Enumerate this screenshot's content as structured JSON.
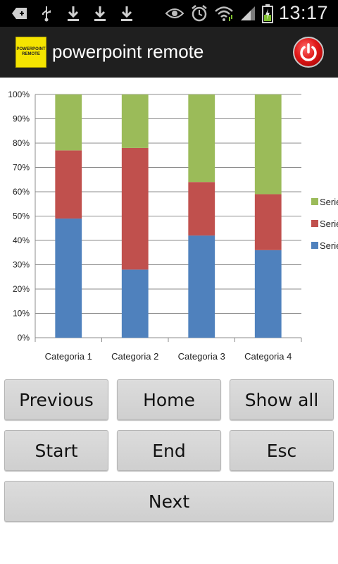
{
  "status_bar": {
    "time": "13:17",
    "icons": [
      "add-icon",
      "usb-icon",
      "download-icon",
      "download-icon",
      "download-icon",
      "eye-icon",
      "alarm-icon",
      "wifi-icon",
      "signal-icon",
      "battery-charging-icon"
    ]
  },
  "app_bar": {
    "logo_text": "POWERPOINT REMOTE",
    "title": "powerpoint remote",
    "power_icon": "power-icon"
  },
  "chart_data": {
    "type": "bar",
    "stacked": "percent",
    "categories": [
      "Categoria 1",
      "Categoria 2",
      "Categoria 3",
      "Categoria 4"
    ],
    "y_ticks": [
      "0%",
      "10%",
      "20%",
      "30%",
      "40%",
      "50%",
      "60%",
      "70%",
      "80%",
      "90%",
      "100%"
    ],
    "ylim": [
      0,
      100
    ],
    "grid": true,
    "legend_position": "right",
    "series": [
      {
        "name": "Serie",
        "color": "#4f81bd",
        "values": [
          49,
          28,
          42,
          36
        ]
      },
      {
        "name": "Serie",
        "color": "#c0504d",
        "values": [
          28,
          50,
          22,
          23
        ]
      },
      {
        "name": "Serie",
        "color": "#9bbb59",
        "values": [
          23,
          22,
          36,
          41
        ]
      }
    ]
  },
  "controls": {
    "previous": "Previous",
    "home": "Home",
    "show_all": "Show all",
    "start": "Start",
    "end": "End",
    "esc": "Esc",
    "next": "Next"
  }
}
